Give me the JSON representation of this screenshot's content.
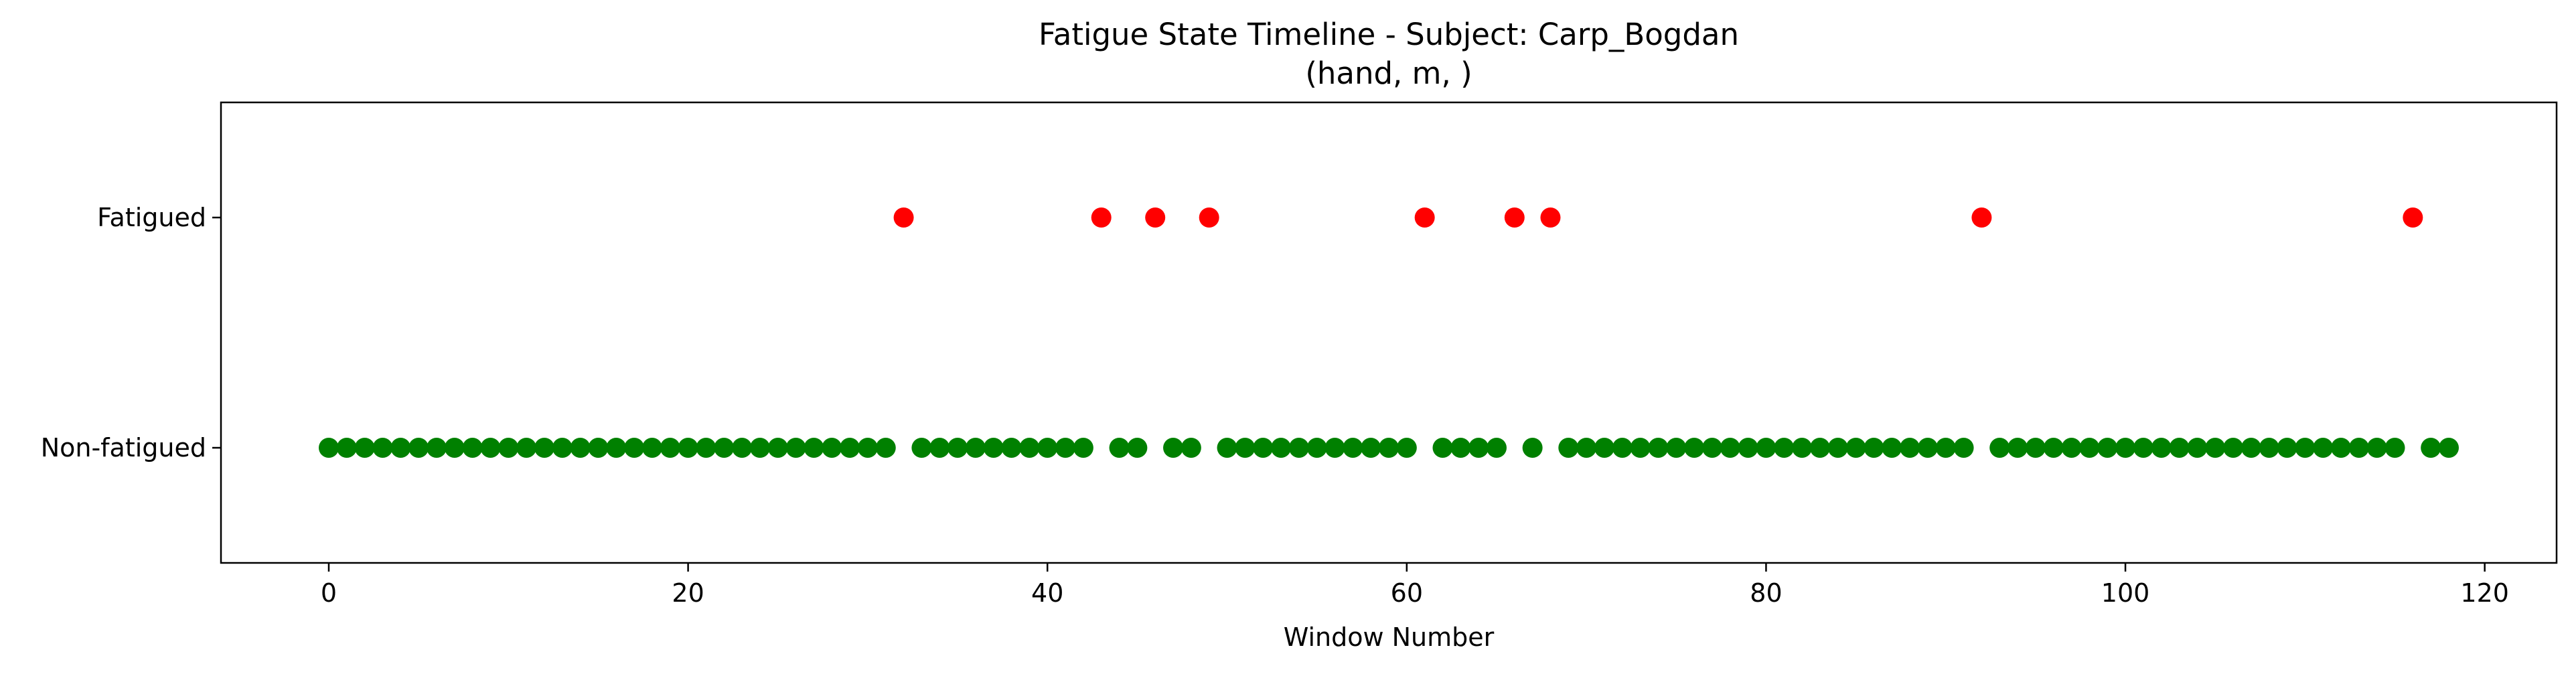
{
  "chart_data": {
    "type": "scatter",
    "title": "Fatigue State Timeline - Subject: Carp_Bogdan",
    "subtitle": "(hand, m, )",
    "xlabel": "Window Number",
    "ylabel": "",
    "xlim": [
      -6,
      124
    ],
    "ylim": [
      -0.5,
      1.5
    ],
    "xticks": [
      0,
      20,
      40,
      60,
      80,
      100,
      120
    ],
    "yticks": [
      {
        "value": 0,
        "label": "Non-fatigued"
      },
      {
        "value": 1,
        "label": "Fatigued"
      }
    ],
    "grid": false,
    "legend": "none",
    "state_colors": {
      "fatigued": "#ff0000",
      "non_fatigued": "#008000"
    },
    "fatigued_windows": [
      32,
      43,
      46,
      49,
      61,
      66,
      68,
      92,
      116
    ],
    "window_range": [
      0,
      118
    ]
  }
}
